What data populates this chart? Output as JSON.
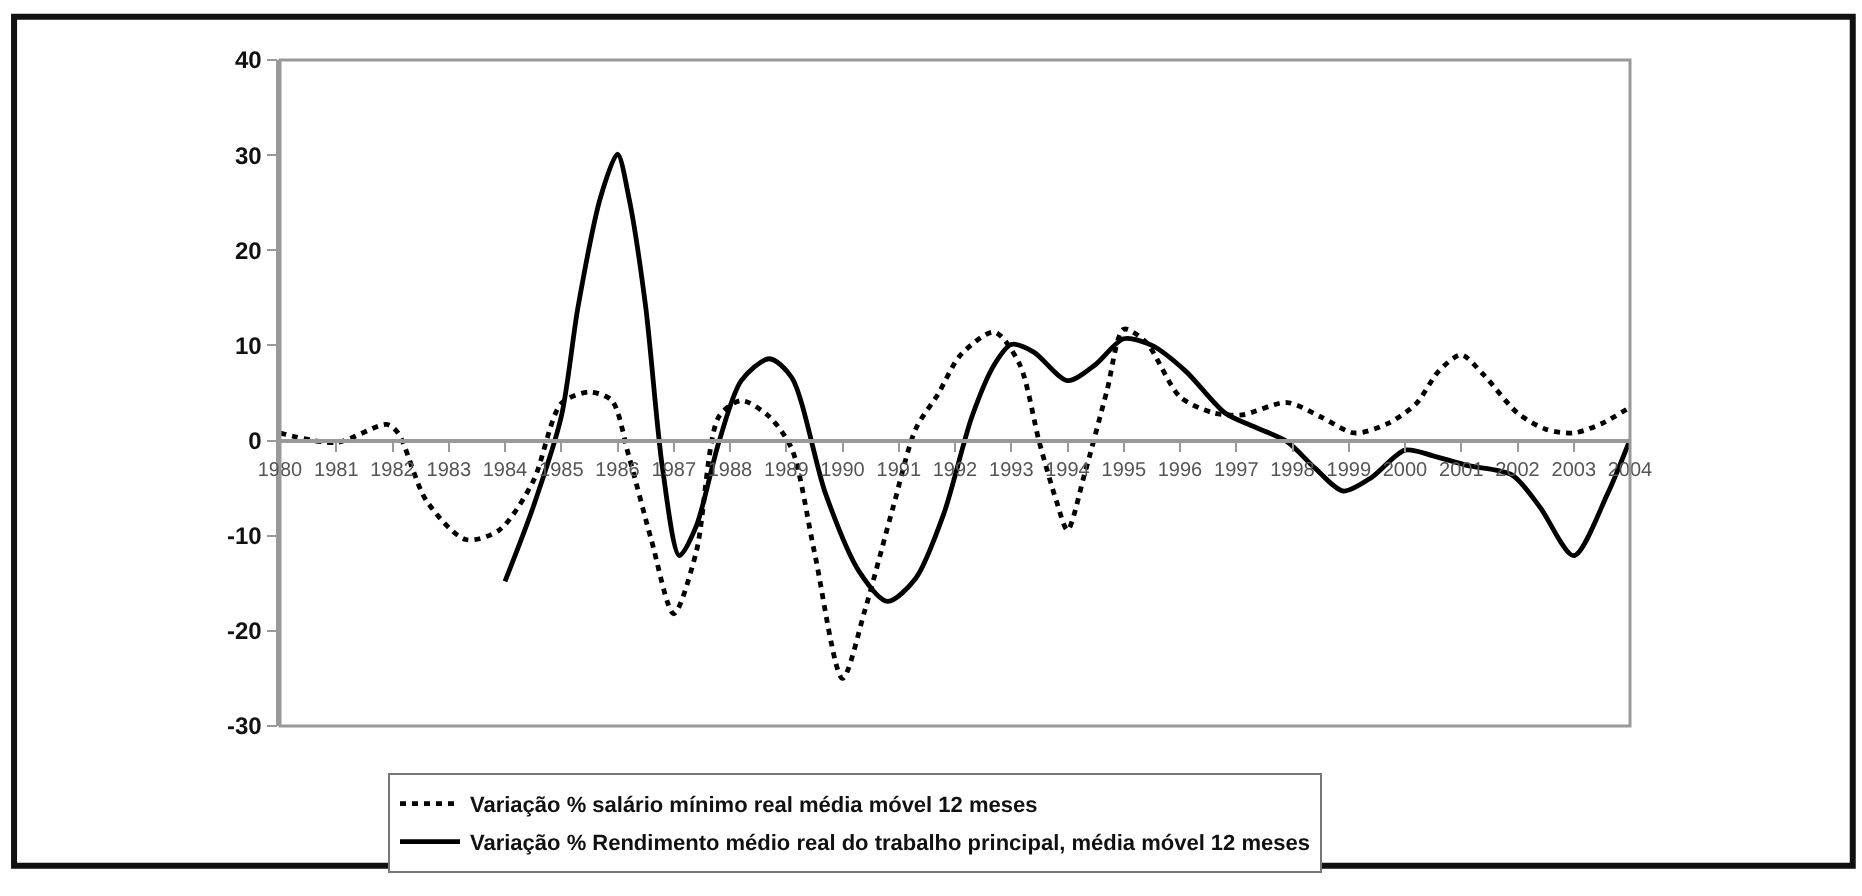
{
  "chart_data": {
    "type": "line",
    "xlim": [
      1980,
      2004
    ],
    "xticks": [
      1980,
      1981,
      1982,
      1983,
      1984,
      1985,
      1986,
      1987,
      1988,
      1989,
      1990,
      1991,
      1992,
      1993,
      1994,
      1995,
      1996,
      1997,
      1998,
      1999,
      2000,
      2001,
      2002,
      2003,
      2004
    ],
    "ylim": [
      -30,
      40
    ],
    "yticks": [
      -30,
      -20,
      -10,
      0,
      10,
      20,
      30,
      40
    ],
    "legend": "bottom",
    "marker": "none",
    "series": [
      {
        "name": "Variação % salário mínimo real média móvel 12 meses",
        "color": "#000000",
        "line_style": "dotted",
        "x": [
          1980.0,
          1981.0,
          1981.9,
          1982.1,
          1982.6,
          1983.3,
          1983.9,
          1984.5,
          1985.0,
          1985.5,
          1985.9,
          1986.2,
          1986.6,
          1987.0,
          1987.4,
          1987.8,
          1988.2,
          1988.7,
          1989.1,
          1989.5,
          1990.0,
          1990.4,
          1990.9,
          1991.3,
          1991.7,
          1992.1,
          1992.7,
          1993.15,
          1993.5,
          1993.8,
          1994.0,
          1994.3,
          1994.7,
          1995.0,
          1995.4,
          1996.0,
          1996.6,
          1997.1,
          1997.9,
          1998.5,
          1999.1,
          1999.7,
          2000.2,
          2000.6,
          2001.0,
          2001.4,
          2002.0,
          2002.5,
          2003.0,
          2003.5,
          2004.0
        ],
        "values": [
          0.8,
          -0.2,
          1.7,
          0.8,
          -6.3,
          -10.4,
          -9.4,
          -4.3,
          3.9,
          5.1,
          4.2,
          -1.6,
          -10.4,
          -18.2,
          -11.7,
          2.5,
          4.2,
          2.5,
          -0.9,
          -11.7,
          -25.0,
          -17.8,
          -7.0,
          1.2,
          4.9,
          9.0,
          11.4,
          8.0,
          -0.2,
          -6.3,
          -9.4,
          -3.6,
          5.2,
          11.7,
          10.3,
          4.6,
          2.9,
          2.7,
          4.0,
          2.5,
          0.8,
          1.8,
          3.9,
          7.3,
          9.0,
          6.9,
          2.9,
          1.2,
          0.8,
          1.8,
          3.5
        ]
      },
      {
        "name": "Variação % Rendimento médio real do trabalho principal, média móvel 12 meses",
        "color": "#000000",
        "line_style": "solid",
        "x": [
          1984.0,
          1984.5,
          1985.0,
          1985.3,
          1985.7,
          1986.0,
          1986.2,
          1986.5,
          1986.8,
          1987.1,
          1987.4,
          1987.8,
          1988.2,
          1988.7,
          1989.1,
          1989.7,
          1990.3,
          1990.8,
          1991.3,
          1991.8,
          1992.3,
          1992.7,
          1993.0,
          1993.4,
          1994.0,
          1994.5,
          1995.0,
          1995.5,
          1996.1,
          1996.8,
          1997.3,
          1997.9,
          1998.4,
          1998.9,
          1999.4,
          2000.0,
          2000.5,
          2001.1,
          2001.9,
          2002.4,
          2003.0,
          2003.6,
          2004.0
        ],
        "values": [
          -14.8,
          -7.0,
          2.5,
          14.1,
          25.6,
          30.1,
          25.6,
          14.1,
          -2.9,
          -12.1,
          -9.0,
          -0.2,
          6.3,
          8.6,
          6.6,
          -5.6,
          -13.8,
          -16.9,
          -14.5,
          -7.7,
          2.5,
          8.0,
          10.1,
          9.3,
          6.3,
          8.0,
          10.7,
          10.0,
          7.3,
          2.9,
          1.5,
          -0.1,
          -2.9,
          -5.3,
          -3.9,
          -1.0,
          -1.6,
          -2.6,
          -3.6,
          -7.0,
          -12.1,
          -5.6,
          0.1
        ]
      }
    ]
  }
}
